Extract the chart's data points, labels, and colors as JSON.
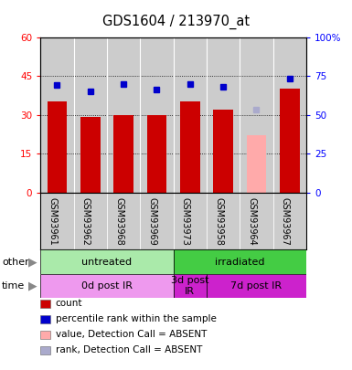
{
  "title": "GDS1604 / 213970_at",
  "samples": [
    "GSM93961",
    "GSM93962",
    "GSM93968",
    "GSM93969",
    "GSM93973",
    "GSM93958",
    "GSM93964",
    "GSM93967"
  ],
  "count_values": [
    35,
    29,
    30,
    30,
    35,
    32,
    22,
    40
  ],
  "count_absent": [
    false,
    false,
    false,
    false,
    false,
    false,
    true,
    false
  ],
  "rank_values": [
    69,
    65,
    70,
    66,
    70,
    68,
    53,
    73
  ],
  "rank_absent": [
    false,
    false,
    false,
    false,
    false,
    false,
    true,
    false
  ],
  "ylim_left": [
    0,
    60
  ],
  "ylim_right": [
    0,
    100
  ],
  "yticks_left": [
    0,
    15,
    30,
    45,
    60
  ],
  "ytick_labels_left": [
    "0",
    "15",
    "30",
    "45",
    "60"
  ],
  "yticks_right": [
    0,
    25,
    50,
    75,
    100
  ],
  "ytick_labels_right": [
    "0",
    "25",
    "50",
    "75",
    "100%"
  ],
  "bar_color_normal": "#cc0000",
  "bar_color_absent": "#ffaaaa",
  "rank_color_normal": "#0000cc",
  "rank_color_absent": "#aaaacc",
  "other_row": [
    {
      "label": "untreated",
      "start": 0,
      "end": 4,
      "color": "#aaeaaa"
    },
    {
      "label": "irradiated",
      "start": 4,
      "end": 8,
      "color": "#44cc44"
    }
  ],
  "time_row": [
    {
      "label": "0d post IR",
      "start": 0,
      "end": 4,
      "color": "#ee99ee"
    },
    {
      "label": "3d post\nIR",
      "start": 4,
      "end": 5,
      "color": "#cc22cc"
    },
    {
      "label": "7d post IR",
      "start": 5,
      "end": 8,
      "color": "#cc22cc"
    }
  ],
  "legend_items": [
    {
      "color": "#cc0000",
      "label": "count"
    },
    {
      "color": "#0000cc",
      "label": "percentile rank within the sample"
    },
    {
      "color": "#ffaaaa",
      "label": "value, Detection Call = ABSENT"
    },
    {
      "color": "#aaaacc",
      "label": "rank, Detection Call = ABSENT"
    }
  ],
  "plot_bg": "#cccccc",
  "sample_bg": "#cccccc",
  "fig_w": 3.85,
  "fig_h": 4.05
}
